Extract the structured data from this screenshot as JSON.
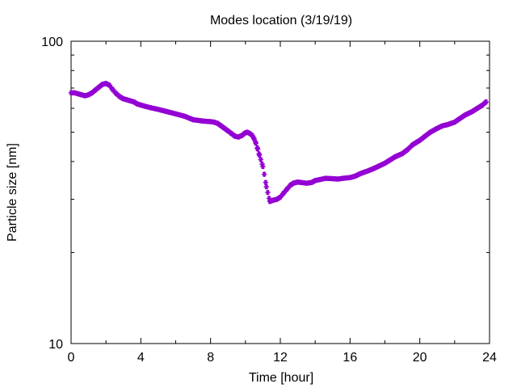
{
  "chart_data": {
    "type": "scatter",
    "title": "Modes location (3/19/19)",
    "xlabel": "Time [hour]",
    "ylabel": "Particle size [nm]",
    "xlim": [
      0,
      24
    ],
    "ylim": [
      10,
      100
    ],
    "yscale": "log",
    "grid": false,
    "legend": "none",
    "x_ticks": [
      0,
      4,
      8,
      12,
      16,
      20,
      24
    ],
    "y_ticks": [
      10,
      100
    ],
    "marker_color": "#9400D3",
    "marker": "asterisk",
    "series": [
      {
        "x": [
          0,
          0.2,
          0.4,
          0.6,
          0.8,
          1.0,
          1.2,
          1.4,
          1.6,
          1.8,
          2.0,
          2.2,
          2.4,
          2.6,
          2.8,
          3.0,
          3.2,
          3.4,
          3.6,
          3.8,
          4.0,
          4.3,
          4.6,
          5.0,
          5.5,
          6.0,
          6.5,
          7.0,
          7.5,
          7.8,
          8.0,
          8.2,
          8.4,
          8.6,
          8.8,
          9.0,
          9.2,
          9.4,
          9.6,
          9.8,
          10.0,
          10.1,
          10.2,
          10.3,
          10.4,
          10.5,
          10.6,
          10.7,
          10.8,
          11.0,
          11.2,
          11.4,
          11.6,
          11.8,
          12.0,
          12.2,
          12.4,
          12.6,
          12.8,
          13.0,
          13.2,
          13.5,
          13.8,
          14.0,
          14.3,
          14.6,
          15.0,
          15.3,
          15.6,
          16.0,
          16.3,
          16.6,
          17.0,
          17.3,
          17.6,
          18.0,
          18.3,
          18.6,
          19.0,
          19.3,
          19.6,
          20.0,
          20.3,
          20.6,
          21.0,
          21.3,
          21.6,
          22.0,
          22.3,
          22.6,
          23.0,
          23.3,
          23.6,
          23.8
        ],
        "y": [
          67.5,
          67.5,
          67.0,
          66.5,
          66.0,
          66.5,
          67.5,
          69.0,
          70.5,
          72.0,
          72.5,
          71.5,
          69.0,
          67.0,
          65.5,
          64.5,
          64.0,
          63.5,
          63.0,
          62.0,
          61.5,
          60.8,
          60.2,
          59.5,
          58.5,
          57.5,
          56.5,
          55.0,
          54.5,
          54.3,
          54.2,
          54.0,
          53.5,
          52.5,
          51.5,
          50.5,
          49.5,
          48.5,
          48.2,
          48.8,
          49.8,
          50.0,
          49.7,
          49.3,
          48.7,
          47.5,
          46.0,
          44.0,
          42.0,
          38.5,
          33.0,
          29.5,
          29.8,
          30.0,
          30.5,
          31.5,
          32.5,
          33.5,
          34.0,
          34.2,
          34.1,
          33.9,
          34.1,
          34.6,
          34.9,
          35.2,
          35.1,
          35.0,
          35.2,
          35.4,
          35.8,
          36.5,
          37.2,
          37.8,
          38.5,
          39.5,
          40.5,
          41.5,
          42.5,
          43.8,
          45.5,
          47.0,
          48.5,
          50.0,
          51.5,
          52.5,
          53.0,
          54.0,
          55.5,
          57.0,
          58.5,
          60.0,
          61.5,
          63.0
        ]
      }
    ]
  }
}
